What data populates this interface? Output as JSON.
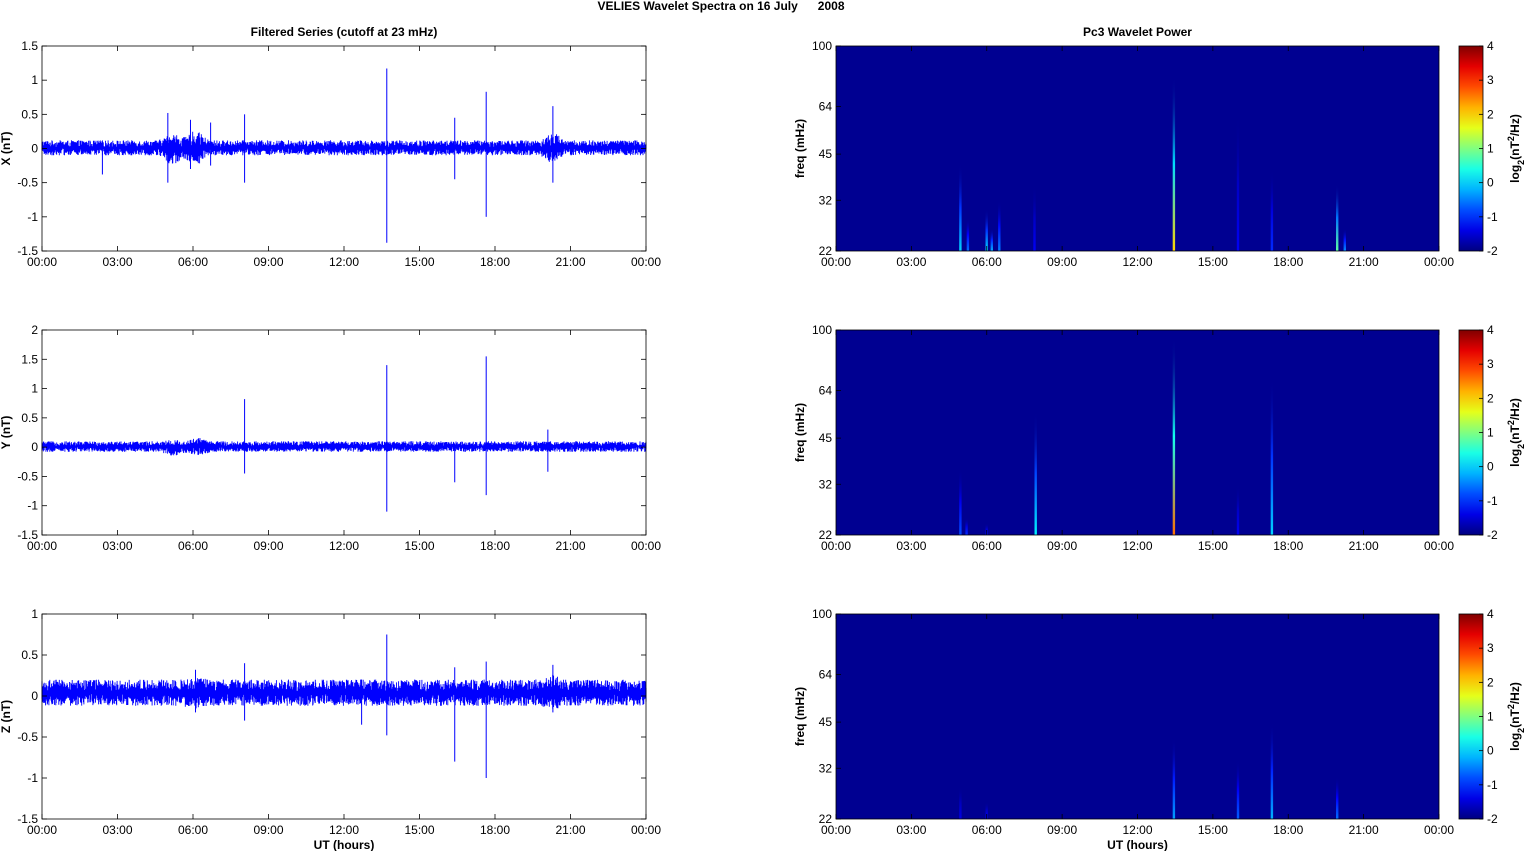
{
  "figure": {
    "title": "VELIES Wavelet Spectra on 16 July      2008"
  },
  "chart_data": [
    {
      "type": "line",
      "panel": "x-series",
      "title": "Filtered Series (cutoff at 23 mHz)",
      "ylabel": "X (nT)",
      "xlabel": "",
      "xticks": [
        "00:00",
        "03:00",
        "06:00",
        "09:00",
        "12:00",
        "15:00",
        "18:00",
        "21:00",
        "00:00"
      ],
      "xlim": [
        0,
        24
      ],
      "ylim": [
        -1.5,
        1.5
      ],
      "yticks": [
        -1.5,
        -1,
        -0.5,
        0,
        0.5,
        1,
        1.5
      ],
      "noise_band": [
        -0.1,
        0.12
      ],
      "color": "#0000ff",
      "bursts": [
        {
          "x": 5.2,
          "lo": -0.35,
          "hi": 0.3
        },
        {
          "x": 6.1,
          "lo": -0.35,
          "hi": 0.35
        },
        {
          "x": 20.3,
          "lo": -0.3,
          "hi": 0.3
        }
      ],
      "spikes": [
        {
          "x": 2.4,
          "lo": -0.38,
          "hi": 0.1
        },
        {
          "x": 5.0,
          "lo": -0.5,
          "hi": 0.52
        },
        {
          "x": 5.9,
          "lo": -0.3,
          "hi": 0.42
        },
        {
          "x": 6.7,
          "lo": -0.25,
          "hi": 0.38
        },
        {
          "x": 8.05,
          "lo": -0.5,
          "hi": 0.5
        },
        {
          "x": 13.7,
          "lo": -1.38,
          "hi": 1.17
        },
        {
          "x": 16.4,
          "lo": -0.45,
          "hi": 0.45
        },
        {
          "x": 17.65,
          "lo": -1.0,
          "hi": 0.83
        },
        {
          "x": 20.3,
          "lo": -0.5,
          "hi": 0.62
        }
      ]
    },
    {
      "type": "heatmap",
      "panel": "x-wavelet",
      "title": "Pc3 Wavelet Power",
      "ylabel": "freq (mHz)",
      "xlabel": "",
      "xticks": [
        "00:00",
        "03:00",
        "06:00",
        "09:00",
        "12:00",
        "15:00",
        "18:00",
        "21:00",
        "00:00"
      ],
      "xlim": [
        0,
        24
      ],
      "ylim": [
        22,
        100
      ],
      "yscale": "log",
      "yticks": [
        22,
        32,
        45,
        64,
        100
      ],
      "colorbar": {
        "label": "log2(nT2/Hz)",
        "ticks": [
          -2,
          -1,
          0,
          1,
          2,
          3,
          4
        ],
        "range": [
          -2,
          4
        ],
        "colormap": "jet"
      },
      "background_value": -1.9,
      "events": [
        {
          "x": 4.95,
          "top_freq": 42,
          "peak": 0.0
        },
        {
          "x": 5.25,
          "top_freq": 28,
          "peak": -0.6
        },
        {
          "x": 6.0,
          "top_freq": 30,
          "peak": 0.0
        },
        {
          "x": 6.2,
          "top_freq": 26,
          "peak": -0.2
        },
        {
          "x": 6.5,
          "top_freq": 32,
          "peak": -0.5
        },
        {
          "x": 7.9,
          "top_freq": 36,
          "peak": -1.3
        },
        {
          "x": 13.45,
          "top_freq": 80,
          "peak": 2.0
        },
        {
          "x": 16.0,
          "top_freq": 60,
          "peak": -1.3
        },
        {
          "x": 17.35,
          "top_freq": 40,
          "peak": -1.0
        },
        {
          "x": 19.95,
          "top_freq": 36,
          "peak": 0.8
        },
        {
          "x": 20.25,
          "top_freq": 26,
          "peak": -0.4
        }
      ]
    },
    {
      "type": "line",
      "panel": "y-series",
      "title": "",
      "ylabel": "Y (nT)",
      "xlabel": "",
      "xticks": [
        "00:00",
        "03:00",
        "06:00",
        "09:00",
        "12:00",
        "15:00",
        "18:00",
        "21:00",
        "00:00"
      ],
      "xlim": [
        0,
        24
      ],
      "ylim": [
        -1.5,
        2
      ],
      "yticks": [
        -1.5,
        -1,
        -0.5,
        0,
        0.5,
        1,
        1.5,
        2
      ],
      "noise_band": [
        -0.08,
        0.1
      ],
      "color": "#0000ff",
      "bursts": [
        {
          "x": 5.2,
          "lo": -0.2,
          "hi": 0.15
        },
        {
          "x": 6.2,
          "lo": -0.2,
          "hi": 0.2
        }
      ],
      "spikes": [
        {
          "x": 8.05,
          "lo": -0.45,
          "hi": 0.82
        },
        {
          "x": 13.7,
          "lo": -1.1,
          "hi": 1.4
        },
        {
          "x": 16.4,
          "lo": -0.6,
          "hi": 0.05
        },
        {
          "x": 17.65,
          "lo": -0.82,
          "hi": 1.55
        },
        {
          "x": 20.1,
          "lo": -0.42,
          "hi": 0.3
        }
      ]
    },
    {
      "type": "heatmap",
      "panel": "y-wavelet",
      "title": "",
      "ylabel": "freq (mHz)",
      "xlabel": "",
      "xticks": [
        "00:00",
        "03:00",
        "06:00",
        "09:00",
        "12:00",
        "15:00",
        "18:00",
        "21:00",
        "00:00"
      ],
      "xlim": [
        0,
        24
      ],
      "ylim": [
        22,
        100
      ],
      "yscale": "log",
      "yticks": [
        22,
        32,
        45,
        64,
        100
      ],
      "colorbar": {
        "label": "log2(nT2/Hz)",
        "ticks": [
          -2,
          -1,
          0,
          1,
          2,
          3,
          4
        ],
        "range": [
          -2,
          4
        ],
        "colormap": "jet"
      },
      "background_value": -1.9,
      "events": [
        {
          "x": 4.95,
          "top_freq": 36,
          "peak": -0.8
        },
        {
          "x": 5.2,
          "top_freq": 25,
          "peak": -1.0
        },
        {
          "x": 6.0,
          "top_freq": 24,
          "peak": -1.2
        },
        {
          "x": 7.95,
          "top_freq": 55,
          "peak": 0.2
        },
        {
          "x": 13.45,
          "top_freq": 95,
          "peak": 2.6
        },
        {
          "x": 16.0,
          "top_freq": 32,
          "peak": -1.3
        },
        {
          "x": 17.35,
          "top_freq": 70,
          "peak": 0.0
        }
      ]
    },
    {
      "type": "line",
      "panel": "z-series",
      "title": "",
      "ylabel": "Z (nT)",
      "xlabel": "UT (hours)",
      "xticks": [
        "00:00",
        "03:00",
        "06:00",
        "09:00",
        "12:00",
        "15:00",
        "18:00",
        "21:00",
        "00:00"
      ],
      "xlim": [
        0,
        24
      ],
      "ylim": [
        -1.5,
        1
      ],
      "yticks": [
        -1.5,
        -1,
        -0.5,
        0,
        0.5,
        1
      ],
      "noise_band": [
        -0.12,
        0.2
      ],
      "color": "#0000ff",
      "bursts": [
        {
          "x": 6.1,
          "lo": -0.2,
          "hi": 0.25
        },
        {
          "x": 20.3,
          "lo": -0.2,
          "hi": 0.3
        }
      ],
      "spikes": [
        {
          "x": 6.1,
          "lo": -0.2,
          "hi": 0.32
        },
        {
          "x": 8.05,
          "lo": -0.3,
          "hi": 0.4
        },
        {
          "x": 12.7,
          "lo": -0.35,
          "hi": 0.2
        },
        {
          "x": 13.7,
          "lo": -0.48,
          "hi": 0.75
        },
        {
          "x": 16.4,
          "lo": -0.8,
          "hi": 0.35
        },
        {
          "x": 17.65,
          "lo": -1.0,
          "hi": 0.42
        },
        {
          "x": 20.3,
          "lo": -0.2,
          "hi": 0.38
        }
      ]
    },
    {
      "type": "heatmap",
      "panel": "z-wavelet",
      "title": "",
      "ylabel": "freq (mHz)",
      "xlabel": "UT (hours)",
      "xticks": [
        "00:00",
        "03:00",
        "06:00",
        "09:00",
        "12:00",
        "15:00",
        "18:00",
        "21:00",
        "00:00"
      ],
      "xlim": [
        0,
        24
      ],
      "ylim": [
        22,
        100
      ],
      "yscale": "log",
      "yticks": [
        22,
        32,
        45,
        64,
        100
      ],
      "colorbar": {
        "label": "log2(nT2/Hz)",
        "ticks": [
          -2,
          -1,
          0,
          1,
          2,
          3,
          4
        ],
        "range": [
          -2,
          4
        ],
        "colormap": "jet"
      },
      "background_value": -1.9,
      "events": [
        {
          "x": 4.95,
          "top_freq": 28,
          "peak": -1.4
        },
        {
          "x": 6.0,
          "top_freq": 25,
          "peak": -1.3
        },
        {
          "x": 13.45,
          "top_freq": 40,
          "peak": -0.3
        },
        {
          "x": 16.0,
          "top_freq": 34,
          "peak": -0.7
        },
        {
          "x": 17.35,
          "top_freq": 45,
          "peak": -0.2
        },
        {
          "x": 19.95,
          "top_freq": 30,
          "peak": -0.6
        }
      ]
    }
  ]
}
